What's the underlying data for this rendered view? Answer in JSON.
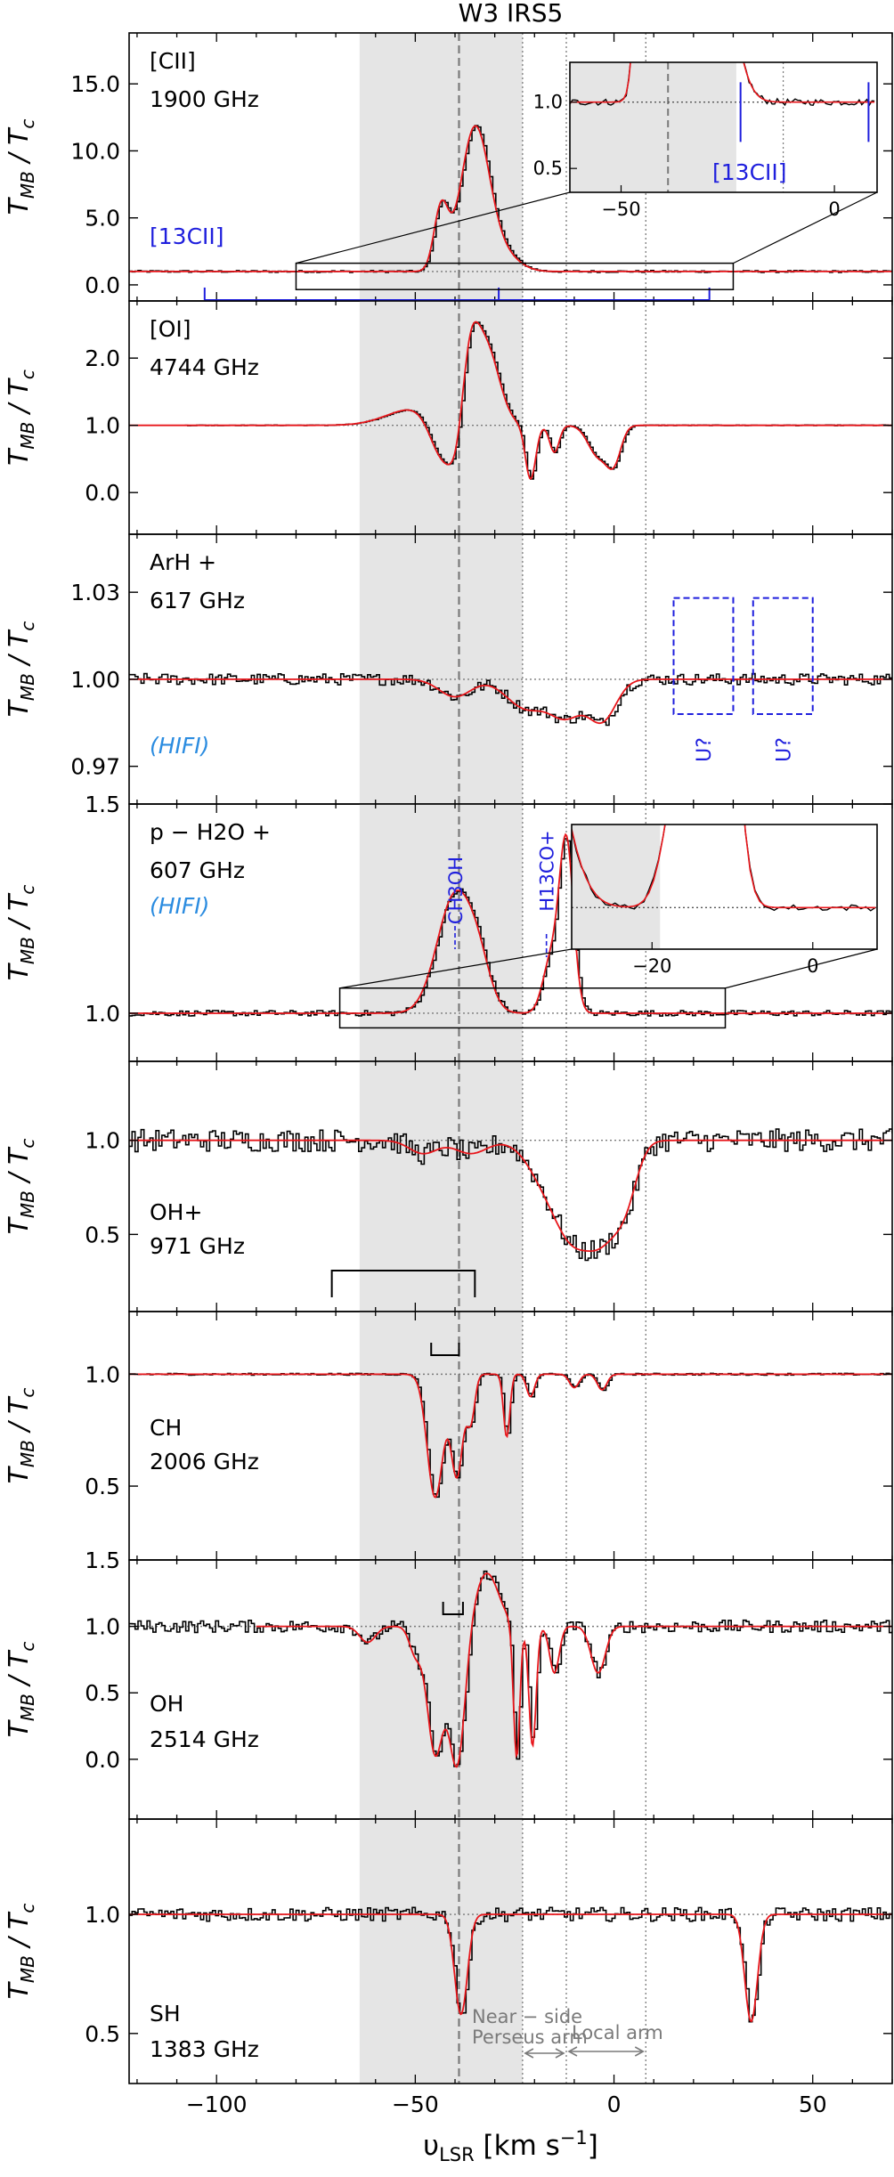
{
  "chart_data": {
    "type": "line",
    "title": "W3 IRS5",
    "xlabel": "υLSR [km s−1]",
    "xlim": [
      -122,
      70
    ],
    "xticks": [
      -100,
      -50,
      0,
      50
    ],
    "xtick_labels": [
      "−100",
      "−50",
      "0",
      "50"
    ],
    "shaded_region": [
      -64,
      -23
    ],
    "systemic_velocity": -39,
    "reference_lines": [
      -23,
      -12,
      8
    ],
    "arms": [
      {
        "label_line1": "Near − side",
        "label_line2": "Perseus arm",
        "range": [
          -23,
          -12
        ]
      },
      {
        "label_line1": "Local arm",
        "label_line2": "",
        "range": [
          -12,
          8
        ]
      }
    ],
    "ylabel": "TMB / Tc",
    "panels": [
      {
        "species": "[CII]",
        "freq": "1900 GHz",
        "note": "",
        "ylim": [
          -1.2,
          18.8
        ],
        "yticks": [
          0,
          5,
          10,
          15
        ],
        "ytick_labels": [
          "0.0",
          "5.0",
          "10.0",
          "15.0"
        ],
        "continuum": 1.0,
        "components": [
          {
            "center": -43.5,
            "width": 1.8,
            "amp": 4.6
          },
          {
            "center": -35,
            "width": 3.6,
            "amp": 10.6
          },
          {
            "center": -28,
            "width": 4,
            "amp": 1.2
          }
        ],
        "marker_label": "[13CII]",
        "markers": [
          -103,
          -29,
          24
        ],
        "inset": {
          "xlim": [
            -62,
            10
          ],
          "ylim": [
            0.32,
            1.3
          ],
          "xticks": [
            -50,
            0
          ],
          "yticks": [
            0.5,
            1.0
          ],
          "ytick_labels": [
            "0.5",
            "1.0"
          ],
          "label": "[13CII]",
          "shade": [
            -62,
            -23
          ],
          "vline": -39,
          "marker_lines": [
            -22,
            8
          ]
        }
      },
      {
        "species": "[OI]",
        "freq": "4744 GHz",
        "note": "",
        "ylim": [
          -0.62,
          2.85
        ],
        "yticks": [
          0,
          1,
          2
        ],
        "ytick_labels": [
          "0.0",
          "1.0",
          "2.0"
        ],
        "continuum": 1.0,
        "components": [
          {
            "center": -50,
            "width": 7,
            "amp": 0.25
          },
          {
            "center": -37,
            "width": 2.5,
            "amp": 1.3
          },
          {
            "center": -32,
            "width": 3.2,
            "amp": 1.1
          },
          {
            "center": -43,
            "width": 3.2,
            "amp": -0.65
          },
          {
            "center": -39,
            "width": 2,
            "amp": -0.85
          },
          {
            "center": -21,
            "width": 1.3,
            "amp": -0.8
          },
          {
            "center": -15,
            "width": 1.2,
            "amp": -0.4
          },
          {
            "center": -4,
            "width": 2.5,
            "amp": -0.45
          },
          {
            "center": 0,
            "width": 1.8,
            "amp": -0.5
          }
        ]
      },
      {
        "species": "ArH +",
        "freq": "617 GHz",
        "note": "(HIFI)",
        "ylim": [
          0.957,
          1.05
        ],
        "yticks": [
          0.97,
          1.0,
          1.03
        ],
        "ytick_labels": [
          "0.97",
          "1.00",
          "1.03"
        ],
        "continuum": 1.0,
        "components": [
          {
            "center": -40,
            "width": 4,
            "amp": -0.006
          },
          {
            "center": -22,
            "width": 5,
            "amp": -0.01
          },
          {
            "center": -12,
            "width": 4,
            "amp": -0.012
          },
          {
            "center": -3,
            "width": 3.5,
            "amp": -0.014
          }
        ],
        "boxes": [
          {
            "x0": 15,
            "x1": 30,
            "y0": 0.988,
            "y1": 1.028,
            "label": "U?"
          },
          {
            "x0": 35,
            "x1": 50,
            "y0": 0.988,
            "y1": 1.028,
            "label": "U?"
          }
        ]
      },
      {
        "species": "p − H2O +",
        "freq": "607 GHz",
        "note": "(HIFI)",
        "ylim": [
          0.885,
          1.5
        ],
        "yticks": [
          1.0,
          1.5
        ],
        "ytick_labels": [
          "1.0",
          "1.5"
        ],
        "continuum": 1.0,
        "components": [
          {
            "center": -40,
            "width": 4.5,
            "amp": 0.28
          },
          {
            "center": -34,
            "width": 3,
            "amp": 0.08
          },
          {
            "center": -12,
            "width": 1.8,
            "amp": 0.41
          },
          {
            "center": -16,
            "width": 2,
            "amp": 0.12
          }
        ],
        "emission_labels": [
          {
            "label": "CH3OH",
            "x": -40
          },
          {
            "label": "H13CO+",
            "x": -17
          }
        ],
        "inset": {
          "xlim": [
            -30,
            8
          ],
          "ylim": [
            0.97,
            1.06
          ],
          "xticks": [
            -20,
            0
          ],
          "yticks": [],
          "ytick_labels": [],
          "shade": [
            -30,
            -19
          ],
          "refline": 1.0
        }
      },
      {
        "species": "OH+",
        "freq": "971 GHz",
        "note": "",
        "ylim": [
          0.09,
          1.42
        ],
        "yticks": [
          0.5,
          1.0
        ],
        "ytick_labels": [
          "0.5",
          "1.0"
        ],
        "continuum": 1.0,
        "components": [
          {
            "center": -48,
            "width": 3.5,
            "amp": -0.07
          },
          {
            "center": -36,
            "width": 4,
            "amp": -0.07
          },
          {
            "center": -16,
            "width": 5,
            "amp": -0.25
          },
          {
            "center": -10,
            "width": 4,
            "amp": -0.35
          },
          {
            "center": -3,
            "width": 4,
            "amp": -0.45
          },
          {
            "center": 3,
            "width": 3,
            "amp": -0.25
          }
        ],
        "bracket": [
          -71,
          -35
        ]
      },
      {
        "species": "CH",
        "freq": "2006 GHz",
        "note": "",
        "ylim": [
          0.17,
          1.28
        ],
        "yticks": [
          0.5,
          1.0
        ],
        "ytick_labels": [
          "0.5",
          "1.0"
        ],
        "continuum": 1.0,
        "components": [
          {
            "center": -45,
            "width": 2,
            "amp": -0.55
          },
          {
            "center": -39.5,
            "width": 1.5,
            "amp": -0.45
          },
          {
            "center": -36,
            "width": 1,
            "amp": -0.2
          },
          {
            "center": -27,
            "width": 0.8,
            "amp": -0.28
          },
          {
            "center": -21,
            "width": 1,
            "amp": -0.1
          },
          {
            "center": -10,
            "width": 1.2,
            "amp": -0.06
          },
          {
            "center": -3,
            "width": 1.2,
            "amp": -0.07
          }
        ],
        "bracket": [
          -46,
          -39
        ]
      },
      {
        "species": "OH",
        "freq": "2514 GHz",
        "note": "",
        "ylim": [
          -0.45,
          1.5
        ],
        "yticks": [
          0,
          0.5,
          1.0,
          1.5
        ],
        "ytick_labels": [
          "0.0",
          "0.5",
          "1.0",
          "1.5"
        ],
        "continuum": 1.0,
        "components": [
          {
            "center": -45,
            "width": 2,
            "amp": -0.95
          },
          {
            "center": -39.5,
            "width": 2,
            "amp": -1.05
          },
          {
            "center": -50,
            "width": 1.5,
            "amp": -0.2
          },
          {
            "center": -32,
            "width": 3,
            "amp": 0.4
          },
          {
            "center": -24.5,
            "width": 0.8,
            "amp": -1.0
          },
          {
            "center": -20.5,
            "width": 0.9,
            "amp": -0.9
          },
          {
            "center": -15,
            "width": 1.2,
            "amp": -0.35
          },
          {
            "center": -4,
            "width": 1.8,
            "amp": -0.35
          },
          {
            "center": -62,
            "width": 2,
            "amp": -0.12
          }
        ],
        "bracket": [
          -43,
          -38
        ]
      },
      {
        "species": "SH",
        "freq": "1383 GHz",
        "note": "",
        "ylim": [
          0.29,
          1.4
        ],
        "yticks": [
          0.5,
          1.0
        ],
        "ytick_labels": [
          "0.5",
          "1.0"
        ],
        "continuum": 1.0,
        "components": [
          {
            "center": -38.5,
            "width": 1.6,
            "amp": -0.42
          },
          {
            "center": 34.5,
            "width": 1.6,
            "amp": -0.45
          }
        ]
      }
    ]
  }
}
